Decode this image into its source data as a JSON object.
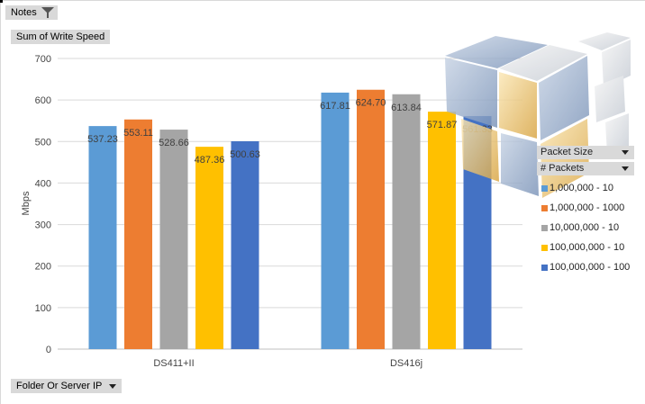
{
  "pivot": {
    "notes_label": "Notes",
    "value_field_label": "Sum of Write Speed",
    "axis_field_label": "Folder Or Server IP",
    "legend_fields": [
      "Packet Size",
      "# Packets"
    ]
  },
  "icons": {
    "filter": "funnel-filter-icon",
    "dropdown": "chevron-down-icon",
    "logo": "cube-logo-icon"
  },
  "chart_data": {
    "type": "bar",
    "title": "",
    "xlabel": "",
    "ylabel": "Mbps",
    "ylim": [
      0,
      700
    ],
    "yticks": [
      0,
      100,
      200,
      300,
      400,
      500,
      600,
      700
    ],
    "grid": true,
    "legend_position": "right",
    "categories": [
      "DS411+II",
      "DS416j"
    ],
    "series": [
      {
        "name": "1,000,000 - 10",
        "color": "#5b9bd5",
        "values": [
          537.23,
          617.81
        ],
        "labels": [
          "537.23",
          "617.81"
        ]
      },
      {
        "name": "1,000,000 - 1000",
        "color": "#ed7d31",
        "values": [
          553.11,
          624.7
        ],
        "labels": [
          "553.11",
          "624.70"
        ]
      },
      {
        "name": "10,000,000 - 10",
        "color": "#a5a5a5",
        "values": [
          528.66,
          613.84
        ],
        "labels": [
          "528.66",
          "613.84"
        ]
      },
      {
        "name": "100,000,000 - 10",
        "color": "#ffc000",
        "values": [
          487.36,
          571.87
        ],
        "labels": [
          "487.36",
          "571.87"
        ]
      },
      {
        "name": "100,000,000 - 100",
        "color": "#4472c4",
        "values": [
          500.63,
          561.33
        ],
        "labels": [
          "500.63",
          "561.33"
        ]
      }
    ]
  }
}
